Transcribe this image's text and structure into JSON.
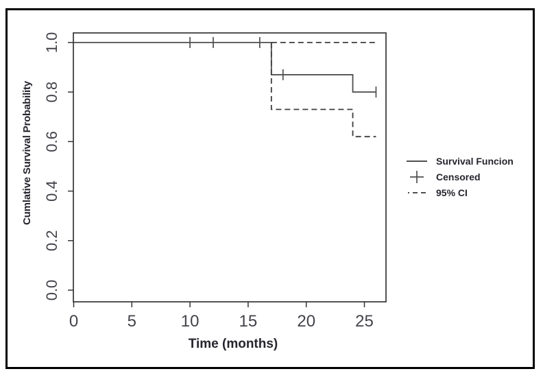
{
  "window": {
    "background": "#ffffff",
    "border_color": "#000000"
  },
  "chart_data": {
    "type": "line",
    "chart_kind": "kaplan-meier-survival-step",
    "title": "",
    "xlabel": "Time (months)",
    "ylabel": "Cumlative Survival Probability",
    "xlim": [
      0,
      26.9
    ],
    "ylim": [
      0,
      1.04
    ],
    "grid": false,
    "legend_position": "right-outside",
    "x_ticks": [
      "0",
      "5",
      "10",
      "15",
      "20",
      "25"
    ],
    "y_ticks": [
      "0.0",
      "0.2",
      "0.4",
      "0.6",
      "0.8",
      "1.0"
    ],
    "series": [
      {
        "name": "Survival Funcion",
        "style": "solid",
        "step": true,
        "points": [
          [
            0,
            1.0
          ],
          [
            17,
            1.0
          ],
          [
            17,
            0.87
          ],
          [
            24,
            0.87
          ],
          [
            24,
            0.8
          ],
          [
            26,
            0.8
          ]
        ]
      },
      {
        "name": "95% CI upper",
        "style": "dashed",
        "step": true,
        "points": [
          [
            17,
            1.0
          ],
          [
            26,
            1.0
          ]
        ]
      },
      {
        "name": "95% CI lower",
        "style": "dashed",
        "step": true,
        "points": [
          [
            17,
            1.0
          ],
          [
            17,
            0.73
          ],
          [
            24,
            0.73
          ],
          [
            24,
            0.62
          ],
          [
            26,
            0.62
          ]
        ]
      }
    ],
    "censored": {
      "name": "Censored",
      "marker": "plus",
      "points": [
        [
          10,
          1.0
        ],
        [
          12,
          1.0
        ],
        [
          16,
          1.0
        ],
        [
          18,
          0.87
        ],
        [
          26,
          0.8
        ]
      ]
    },
    "legend": {
      "items": [
        {
          "label": "Survival Funcion",
          "symbol": "solid-line"
        },
        {
          "label": "Censored",
          "symbol": "plus"
        },
        {
          "label": "95% CI",
          "symbol": "dashed-line"
        }
      ]
    },
    "colors": {
      "frame": "#343434",
      "curve": "#4f4f4f",
      "ci": "#3c3c3c",
      "tick_text": "#43434b",
      "label_text": "#25252e",
      "background": "#ffffff"
    }
  }
}
